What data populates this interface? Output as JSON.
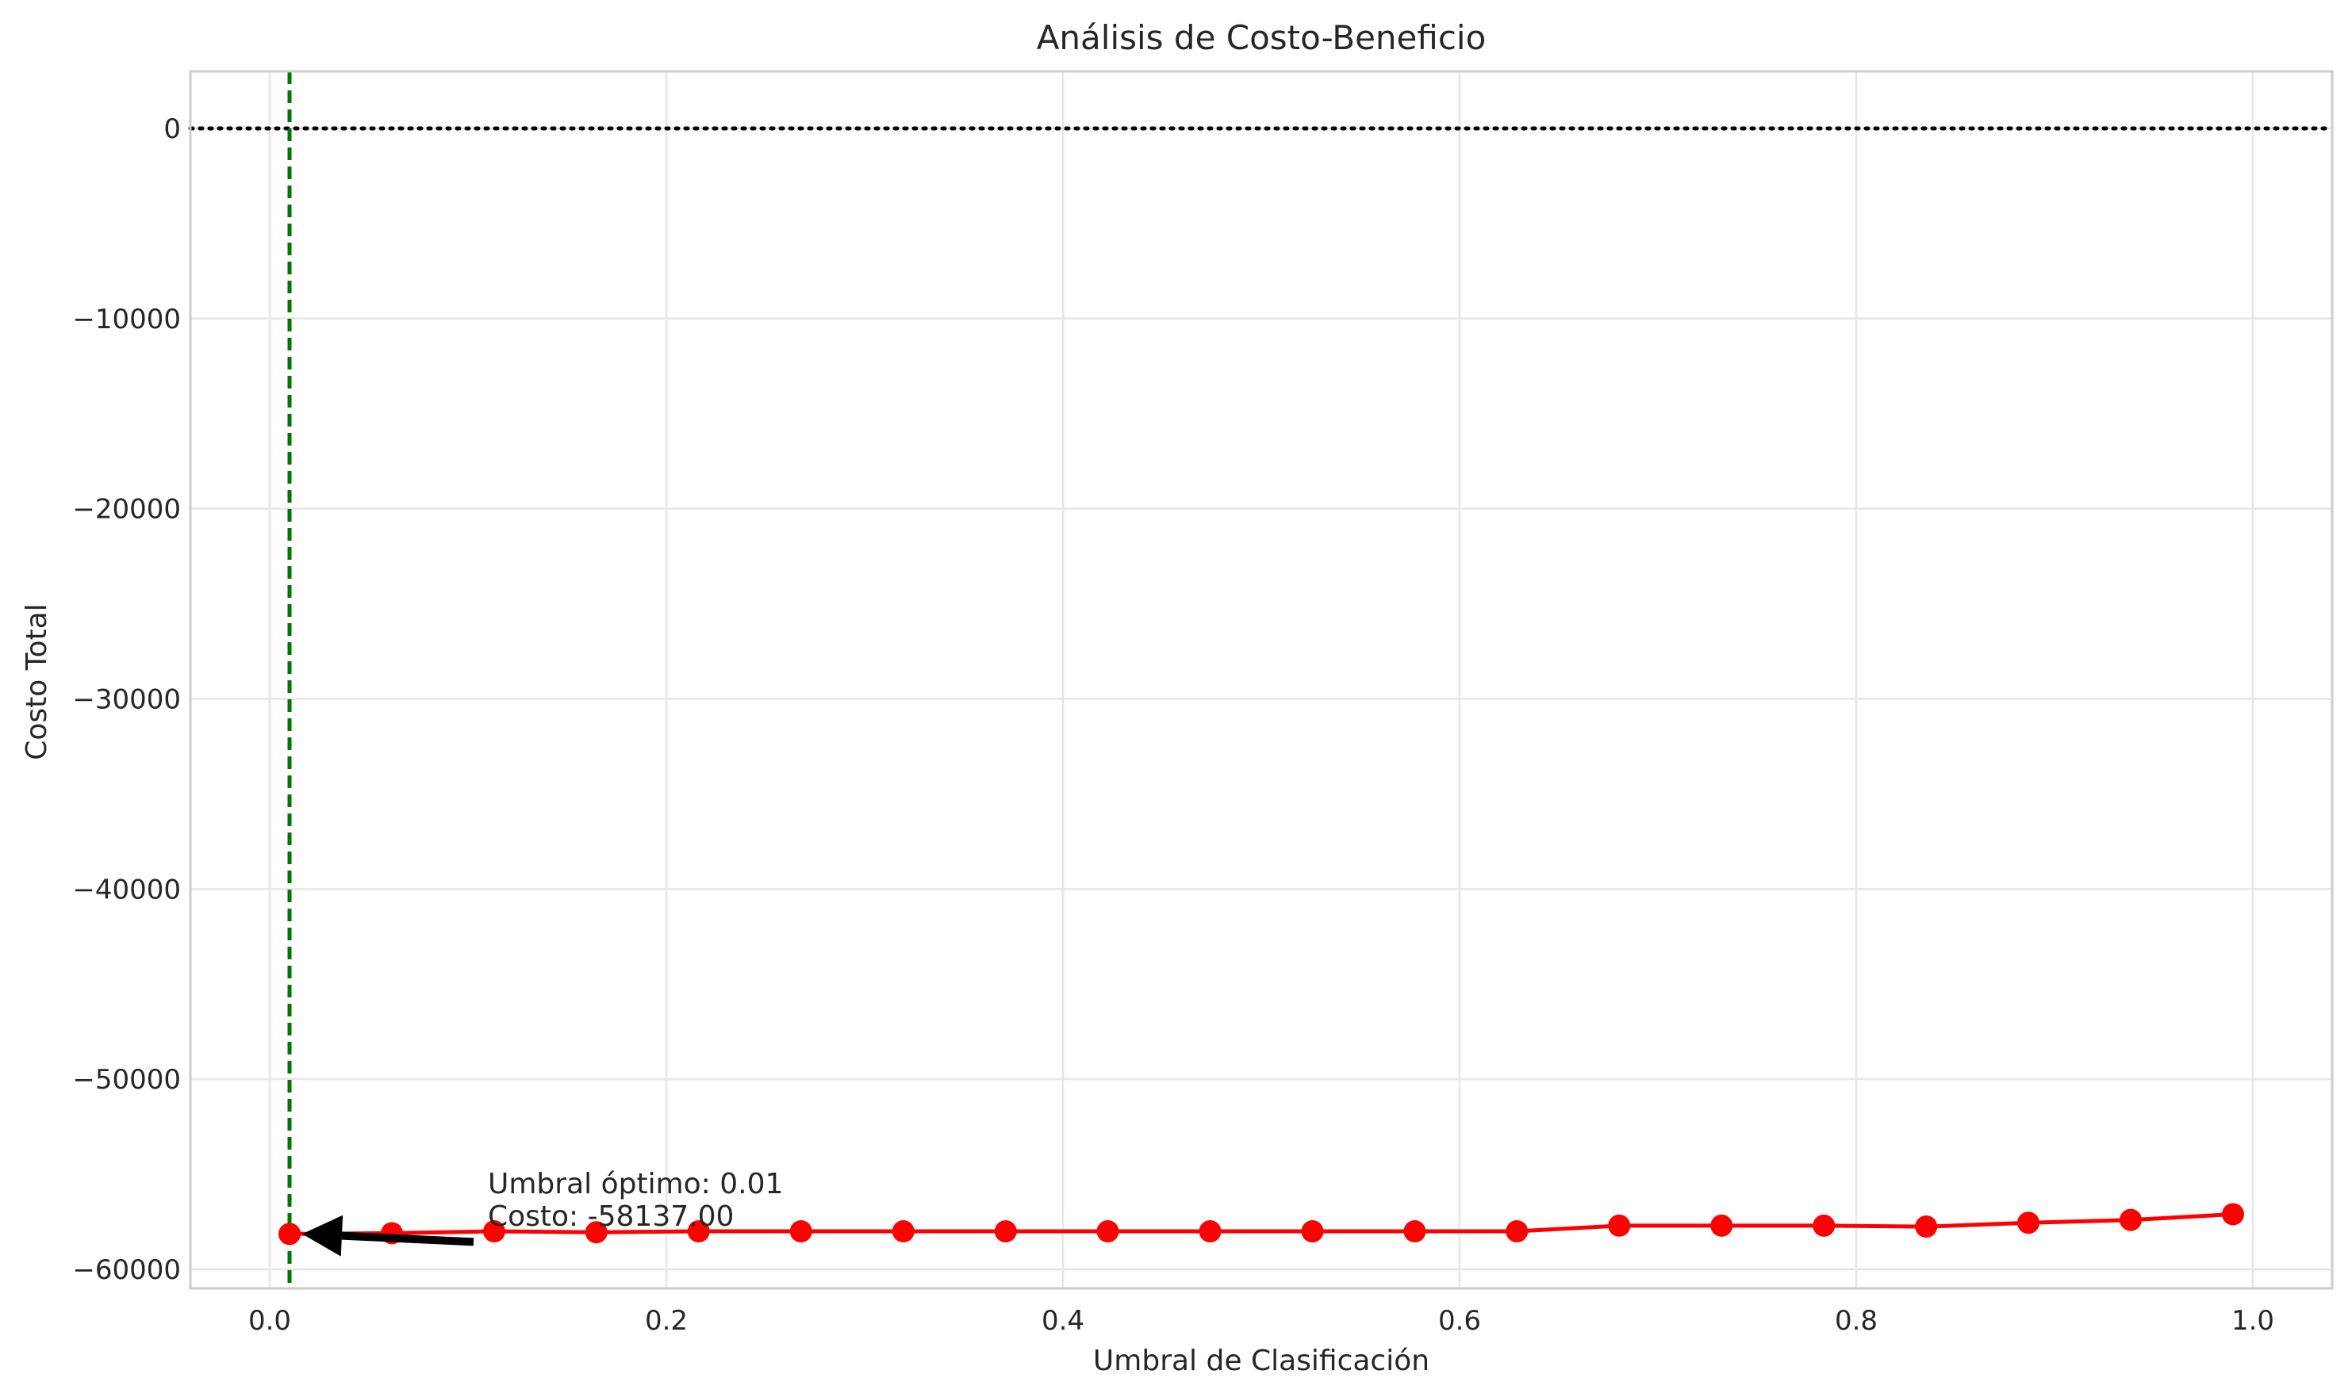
{
  "chart_data": {
    "type": "line",
    "title": "Análisis de Costo-Beneficio",
    "xlabel": "Umbral de Clasificación",
    "ylabel": "Costo Total",
    "xlim": [
      -0.04,
      1.04
    ],
    "ylim": [
      -61000,
      3000
    ],
    "x_ticks": [
      0.0,
      0.2,
      0.4,
      0.6,
      0.8,
      1.0
    ],
    "x_tick_labels": [
      "0.0",
      "0.2",
      "0.4",
      "0.6",
      "0.8",
      "1.0"
    ],
    "y_ticks": [
      0,
      -10000,
      -20000,
      -30000,
      -40000,
      -50000,
      -60000
    ],
    "y_tick_labels": [
      "0",
      "−10000",
      "−20000",
      "−30000",
      "−40000",
      "−50000",
      "−60000"
    ],
    "grid": true,
    "series": [
      {
        "color": "#ff0000",
        "marker": "circle",
        "x": [
          0.01,
          0.0616,
          0.1132,
          0.1647,
          0.2163,
          0.2679,
          0.3195,
          0.3711,
          0.4226,
          0.4742,
          0.5258,
          0.5774,
          0.6289,
          0.6805,
          0.7321,
          0.7837,
          0.8353,
          0.8868,
          0.9384,
          0.99
        ],
        "values": [
          -58137,
          -58100,
          -58000,
          -58050,
          -58000,
          -58000,
          -58000,
          -58000,
          -58000,
          -58000,
          -58000,
          -58000,
          -58000,
          -57700,
          -57700,
          -57700,
          -57750,
          -57550,
          -57400,
          -57100
        ]
      }
    ],
    "reference_lines": [
      {
        "orientation": "horizontal",
        "value": 0,
        "color": "#000000",
        "style": "dotted"
      },
      {
        "orientation": "vertical",
        "value": 0.01,
        "color": "#007700",
        "style": "dashed"
      }
    ],
    "annotation": {
      "line1": "Umbral óptimo: 0.01",
      "line2": "Costo: -58137.00",
      "point": {
        "x": 0.01,
        "y": -58137
      },
      "text_pos": {
        "x": 0.11,
        "y": -56000
      }
    }
  }
}
